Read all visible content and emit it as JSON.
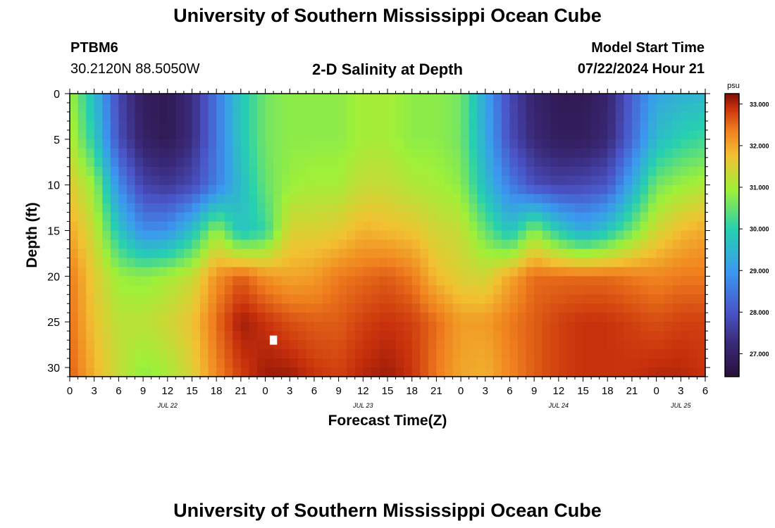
{
  "header": {
    "title": "University of Southern Mississippi Ocean Cube",
    "station_id": "PTBM6",
    "station_coords": "30.2120N  88.5050W",
    "plot_title": "2-D Salinity at Depth",
    "model_start_label": "Model Start Time",
    "model_start_value": "07/22/2024 Hour 21"
  },
  "footer": {
    "title": "University of Southern Mississippi Ocean Cube"
  },
  "chart_data": {
    "type": "heatmap",
    "title": "2-D Salinity at Depth",
    "xlabel": "Forecast Time(Z)",
    "ylabel": "Depth (ft)",
    "x_range_hours": [
      0,
      78
    ],
    "x_tick_labels": [
      "0",
      "3",
      "6",
      "9",
      "12",
      "15",
      "18",
      "21",
      "0",
      "3",
      "6",
      "9",
      "12",
      "15",
      "18",
      "21",
      "0",
      "3",
      "6",
      "9",
      "12",
      "15",
      "18",
      "21",
      "0",
      "3",
      "6"
    ],
    "date_labels": [
      {
        "label": "JUL 22",
        "hour": 12
      },
      {
        "label": "JUL 23",
        "hour": 36
      },
      {
        "label": "JUL 24",
        "hour": 60
      },
      {
        "label": "JUL 25",
        "hour": 75
      }
    ],
    "y_range_ft": [
      0,
      31
    ],
    "y_ticks": [
      0,
      5,
      10,
      15,
      20,
      25,
      30
    ],
    "y_tick_labels": [
      "0",
      "5",
      "10",
      "15",
      "20",
      "25",
      "30"
    ],
    "colorbar": {
      "unit": "psu",
      "min": 26.45,
      "max": 33.25,
      "ticks": [
        27.0,
        28.0,
        29.0,
        30.0,
        31.0,
        32.0,
        33.0
      ],
      "tick_labels": [
        "27.000",
        "28.000",
        "29.000",
        "30.000",
        "31.000",
        "32.000",
        "33.000"
      ]
    },
    "missing_cell": {
      "hour": 25,
      "depth_ft": 27
    },
    "grid_hours": [
      0,
      3,
      6,
      9,
      12,
      15,
      18,
      21,
      24,
      27,
      30,
      33,
      36,
      39,
      42,
      45,
      48,
      51,
      54,
      57,
      60,
      63,
      66,
      69,
      72,
      75,
      78
    ],
    "grid_depths_ft": [
      0,
      5,
      10,
      15,
      20,
      25,
      31
    ],
    "salinity_psu": [
      [
        31.0,
        29.6,
        27.8,
        26.9,
        26.8,
        27.3,
        28.5,
        29.8,
        30.6,
        30.8,
        30.8,
        30.8,
        31.0,
        31.0,
        30.8,
        30.8,
        30.6,
        29.2,
        27.8,
        27.1,
        26.8,
        26.8,
        27.1,
        28.2,
        29.2,
        29.4,
        29.5
      ],
      [
        31.2,
        29.9,
        27.9,
        27.0,
        26.8,
        27.3,
        28.5,
        29.8,
        30.6,
        30.8,
        30.8,
        30.8,
        31.0,
        31.0,
        30.8,
        30.8,
        30.6,
        29.3,
        27.9,
        27.2,
        26.9,
        26.9,
        27.2,
        28.3,
        29.6,
        30.0,
        30.2
      ],
      [
        31.6,
        30.9,
        28.8,
        27.7,
        27.5,
        27.8,
        28.6,
        29.6,
        30.5,
        30.9,
        31.0,
        31.0,
        31.3,
        31.3,
        31.1,
        31.0,
        30.8,
        29.6,
        28.6,
        27.9,
        27.7,
        27.8,
        28.0,
        29.3,
        30.6,
        30.9,
        31.1
      ],
      [
        32.0,
        31.3,
        29.8,
        28.8,
        28.9,
        29.7,
        30.9,
        29.7,
        30.1,
        31.5,
        31.5,
        31.6,
        31.9,
        31.8,
        31.7,
        31.4,
        31.3,
        30.5,
        29.7,
        30.8,
        29.9,
        29.3,
        29.8,
        30.6,
        31.4,
        31.8,
        32.0
      ],
      [
        32.4,
        31.6,
        30.9,
        30.8,
        31.0,
        31.3,
        32.2,
        32.6,
        32.2,
        32.0,
        32.1,
        32.4,
        32.5,
        32.6,
        32.4,
        31.8,
        31.5,
        31.4,
        32.0,
        32.5,
        32.5,
        32.5,
        32.5,
        32.4,
        32.3,
        32.4,
        32.4
      ],
      [
        32.5,
        31.7,
        31.2,
        31.2,
        31.4,
        31.7,
        32.5,
        33.1,
        32.9,
        32.7,
        32.6,
        32.6,
        32.8,
        32.9,
        32.8,
        32.5,
        32.1,
        32.1,
        32.4,
        32.6,
        32.8,
        32.9,
        32.9,
        32.8,
        32.7,
        32.8,
        32.8
      ],
      [
        32.6,
        31.9,
        31.3,
        30.8,
        31.0,
        31.5,
        32.3,
        32.8,
        33.1,
        33.1,
        32.9,
        32.8,
        33.0,
        33.1,
        32.9,
        32.4,
        32.0,
        31.9,
        32.3,
        32.6,
        32.8,
        32.9,
        32.9,
        32.9,
        33.0,
        33.0,
        32.9
      ]
    ]
  }
}
